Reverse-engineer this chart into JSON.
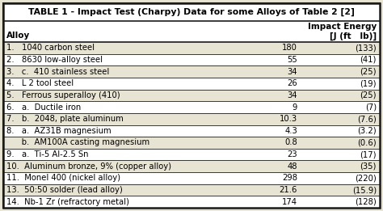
{
  "title": "TABLE 1 - Impact Test (Charpy) Data for some Alloys of Table 2 [2]",
  "col_header_left": "Alloy",
  "col_header_right_line1": "Impact Energy",
  "col_header_right_line2": "[J (ft   lb)]",
  "rows": [
    {
      "alloy": "1.   1040 carbon steel",
      "j": "180",
      "ftlb": "(133)"
    },
    {
      "alloy": "2.   8630 low-alloy steel",
      "j": "55",
      "ftlb": "(41)"
    },
    {
      "alloy": "3.   c.  410 stainless steel",
      "j": "34",
      "ftlb": "(25)"
    },
    {
      "alloy": "4.   L 2 tool steel",
      "j": "26",
      "ftlb": "(19)"
    },
    {
      "alloy": "5.   Ferrous superalloy (410)",
      "j": "34",
      "ftlb": "(25)"
    },
    {
      "alloy": "6.   a.  Ductile iron",
      "j": "9",
      "ftlb": "(7)"
    },
    {
      "alloy": "7.   b.  2048, plate aluminum",
      "j": "10.3",
      "ftlb": "(7.6)"
    },
    {
      "alloy": "8.   a.  AZ31B magnesium",
      "j": "4.3",
      "ftlb": "(3.2)"
    },
    {
      "alloy": "      b.  AM100A casting magnesium",
      "j": "0.8",
      "ftlb": "(0.6)"
    },
    {
      "alloy": "9.   a.  Ti-5 Al-2.5 Sn",
      "j": "23",
      "ftlb": "(17)"
    },
    {
      "alloy": "10.  Aluminum bronze, 9% (copper alloy)",
      "j": "48",
      "ftlb": "(35)"
    },
    {
      "alloy": "11.  Monel 400 (nickel alloy)",
      "j": "298",
      "ftlb": "(220)"
    },
    {
      "alloy": "13.  50:50 solder (lead alloy)",
      "j": "21.6",
      "ftlb": "(15.9)"
    },
    {
      "alloy": "14.  Nb-1 Zr (refractory metal)",
      "j": "174",
      "ftlb": "(128)"
    }
  ],
  "bg_color": "#e8e4d4",
  "border_color": "#1a1a1a",
  "text_color": "#000000",
  "font_size": 7.2,
  "title_font_size": 7.8,
  "header_font_size": 7.5
}
